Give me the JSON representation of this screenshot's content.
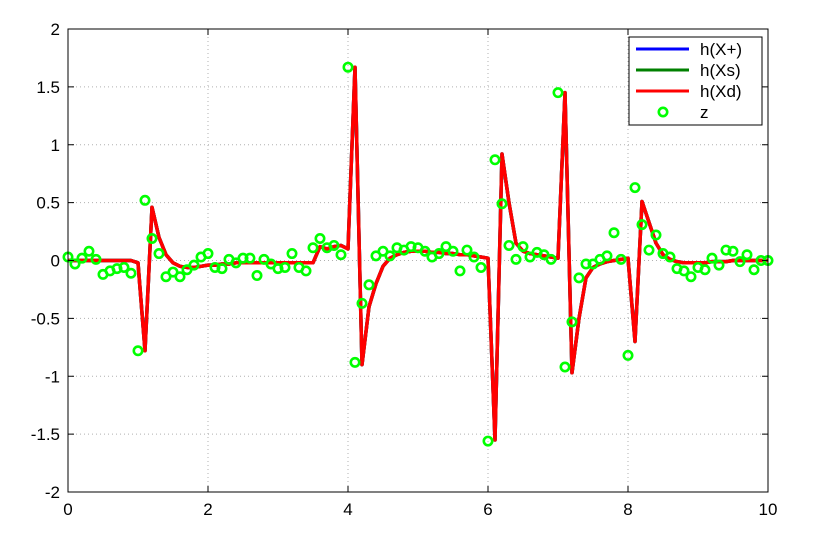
{
  "chart_data": {
    "type": "line",
    "title": "",
    "xlabel": "",
    "ylabel": "",
    "xlim": [
      0,
      10
    ],
    "ylim": [
      -2,
      2
    ],
    "grid": true,
    "legend_position": "top-right",
    "x_ticks": [
      0,
      2,
      4,
      6,
      8,
      10
    ],
    "x_tick_labels": [
      "0",
      "2",
      "4",
      "6",
      "8",
      "10"
    ],
    "y_ticks": [
      -2,
      -1.5,
      -1,
      -0.5,
      0,
      0.5,
      1,
      1.5,
      2
    ],
    "y_tick_labels": [
      "-2",
      "-1.5",
      "-1",
      "-0.5",
      "0",
      "0.5",
      "1",
      "1.5",
      "2"
    ],
    "x": [
      0,
      0.1,
      0.2,
      0.3,
      0.4,
      0.5,
      0.6,
      0.7,
      0.8,
      0.9,
      1.0,
      1.1,
      1.2,
      1.3,
      1.4,
      1.5,
      1.6,
      1.7,
      1.8,
      1.9,
      2.0,
      2.1,
      2.2,
      2.3,
      2.4,
      2.5,
      2.6,
      2.7,
      2.8,
      2.9,
      3.0,
      3.1,
      3.2,
      3.3,
      3.4,
      3.5,
      3.6,
      3.7,
      3.8,
      3.9,
      4.0,
      4.1,
      4.2,
      4.3,
      4.4,
      4.5,
      4.6,
      4.7,
      4.8,
      4.9,
      5.0,
      5.1,
      5.2,
      5.3,
      5.4,
      5.5,
      5.6,
      5.7,
      5.8,
      5.9,
      6.0,
      6.1,
      6.2,
      6.3,
      6.4,
      6.5,
      6.6,
      6.7,
      6.8,
      6.9,
      7.0,
      7.1,
      7.2,
      7.3,
      7.4,
      7.5,
      7.6,
      7.7,
      7.8,
      7.9,
      8.0,
      8.1,
      8.2,
      8.3,
      8.4,
      8.5,
      8.6,
      8.7,
      8.8,
      8.9,
      9.0,
      9.1,
      9.2,
      9.3,
      9.4,
      9.5,
      9.6,
      9.7,
      9.8,
      9.9,
      10.0
    ],
    "series": [
      {
        "name": "h(X+)",
        "kind": "line",
        "color": "#0000ff",
        "values": [
          0,
          0,
          0,
          0,
          0,
          0,
          0,
          0,
          0,
          0,
          -0.02,
          -0.78,
          0.46,
          0.2,
          0.05,
          -0.02,
          -0.05,
          -0.06,
          -0.06,
          -0.05,
          -0.04,
          -0.04,
          -0.03,
          -0.03,
          -0.02,
          -0.02,
          -0.02,
          -0.02,
          -0.02,
          -0.02,
          -0.02,
          -0.02,
          -0.02,
          -0.02,
          -0.02,
          -0.02,
          0.12,
          0.1,
          0.12,
          0.13,
          0.1,
          1.67,
          -0.9,
          -0.4,
          -0.2,
          -0.05,
          0.02,
          0.05,
          0.07,
          0.08,
          0.08,
          0.08,
          0.07,
          0.07,
          0.06,
          0.06,
          0.05,
          0.05,
          0.04,
          0.03,
          0.02,
          -1.55,
          0.92,
          0.5,
          0.15,
          0.08,
          0.06,
          0.05,
          0.04,
          0.03,
          0.02,
          1.45,
          -0.97,
          -0.5,
          -0.15,
          -0.06,
          -0.03,
          -0.01,
          0,
          0.01,
          0.02,
          -0.7,
          0.51,
          0.33,
          0.15,
          0.05,
          0.01,
          -0.01,
          -0.02,
          -0.02,
          -0.02,
          -0.02,
          -0.01,
          -0.01,
          -0.01,
          0,
          0,
          0,
          0,
          0,
          0
        ]
      },
      {
        "name": "h(Xs)",
        "kind": "line",
        "color": "#008000",
        "values": [
          0,
          0,
          0,
          0,
          0,
          0,
          0,
          0,
          0,
          0,
          -0.02,
          -0.78,
          0.46,
          0.2,
          0.05,
          -0.02,
          -0.05,
          -0.06,
          -0.06,
          -0.05,
          -0.04,
          -0.04,
          -0.03,
          -0.03,
          -0.02,
          -0.02,
          -0.02,
          -0.02,
          -0.02,
          -0.02,
          -0.02,
          -0.02,
          -0.02,
          -0.02,
          -0.02,
          -0.02,
          0.12,
          0.1,
          0.12,
          0.13,
          0.1,
          1.67,
          -0.9,
          -0.4,
          -0.2,
          -0.05,
          0.02,
          0.05,
          0.07,
          0.08,
          0.08,
          0.08,
          0.07,
          0.07,
          0.06,
          0.06,
          0.05,
          0.05,
          0.04,
          0.03,
          0.02,
          -1.55,
          0.92,
          0.5,
          0.15,
          0.08,
          0.06,
          0.05,
          0.04,
          0.03,
          0.02,
          1.45,
          -0.97,
          -0.5,
          -0.15,
          -0.06,
          -0.03,
          -0.01,
          0,
          0.01,
          0.02,
          -0.7,
          0.51,
          0.33,
          0.15,
          0.05,
          0.01,
          -0.01,
          -0.02,
          -0.02,
          -0.02,
          -0.02,
          -0.01,
          -0.01,
          -0.01,
          0,
          0,
          0,
          0,
          0,
          0
        ]
      },
      {
        "name": "h(Xd)",
        "kind": "line",
        "color": "#ff0000",
        "values": [
          0,
          0,
          0,
          0,
          0,
          0,
          0,
          0,
          0,
          0,
          -0.02,
          -0.78,
          0.46,
          0.2,
          0.05,
          -0.02,
          -0.05,
          -0.06,
          -0.06,
          -0.05,
          -0.04,
          -0.04,
          -0.03,
          -0.03,
          -0.02,
          -0.02,
          -0.02,
          -0.02,
          -0.02,
          -0.02,
          -0.02,
          -0.02,
          -0.02,
          -0.02,
          -0.02,
          -0.02,
          0.12,
          0.1,
          0.12,
          0.13,
          0.1,
          1.67,
          -0.9,
          -0.4,
          -0.2,
          -0.05,
          0.02,
          0.05,
          0.07,
          0.08,
          0.08,
          0.08,
          0.07,
          0.07,
          0.06,
          0.06,
          0.05,
          0.05,
          0.04,
          0.03,
          0.02,
          -1.55,
          0.92,
          0.5,
          0.15,
          0.08,
          0.06,
          0.05,
          0.04,
          0.03,
          0.02,
          1.45,
          -0.97,
          -0.5,
          -0.15,
          -0.06,
          -0.03,
          -0.01,
          0,
          0.01,
          0.02,
          -0.7,
          0.51,
          0.33,
          0.15,
          0.05,
          0.01,
          -0.01,
          -0.02,
          -0.02,
          -0.02,
          -0.02,
          -0.01,
          -0.01,
          -0.01,
          0,
          0,
          0,
          0,
          0,
          0
        ]
      },
      {
        "name": "z",
        "kind": "scatter",
        "color": "#00ff00",
        "values": [
          0.03,
          -0.03,
          0.02,
          0.08,
          0.01,
          -0.12,
          -0.09,
          -0.07,
          -0.06,
          -0.11,
          -0.78,
          0.52,
          0.19,
          0.06,
          -0.14,
          -0.1,
          -0.14,
          -0.08,
          -0.04,
          0.03,
          0.06,
          -0.06,
          -0.07,
          0.01,
          -0.02,
          0.02,
          0.02,
          -0.13,
          0.01,
          -0.03,
          -0.07,
          -0.06,
          0.06,
          -0.06,
          -0.09,
          0.11,
          0.19,
          0.11,
          0.13,
          0.05,
          1.67,
          -0.88,
          -0.37,
          -0.21,
          0.04,
          0.08,
          0.04,
          0.11,
          0.09,
          0.12,
          0.11,
          0.08,
          0.03,
          0.06,
          0.12,
          0.08,
          -0.09,
          0.09,
          0.03,
          -0.06,
          -1.56,
          0.87,
          0.49,
          0.13,
          0.01,
          0.12,
          0.03,
          0.07,
          0.05,
          0.01,
          1.45,
          -0.92,
          -0.53,
          -0.15,
          -0.03,
          -0.03,
          0.01,
          0.04,
          0.24,
          0.01,
          -0.82,
          0.63,
          0.31,
          0.09,
          0.22,
          0.06,
          0.03,
          -0.07,
          -0.09,
          -0.14,
          -0.06,
          -0.08,
          0.02,
          -0.04,
          0.09,
          0.08,
          -0.01,
          0.05,
          -0.08,
          0,
          0
        ]
      }
    ]
  }
}
